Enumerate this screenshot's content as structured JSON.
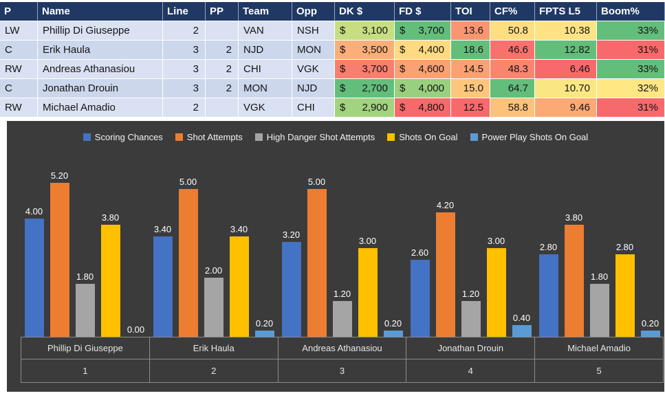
{
  "table": {
    "currency_symbol": "$",
    "columns": [
      {
        "key": "pos",
        "label": "P",
        "align": "left"
      },
      {
        "key": "name",
        "label": "Name",
        "align": "left"
      },
      {
        "key": "line",
        "label": "Line",
        "align": "right"
      },
      {
        "key": "pp",
        "label": "PP",
        "align": "right"
      },
      {
        "key": "team",
        "label": "Team",
        "align": "left"
      },
      {
        "key": "opp",
        "label": "Opp",
        "align": "left"
      },
      {
        "key": "dk",
        "label": "DK $",
        "align": "currency"
      },
      {
        "key": "fd",
        "label": "FD $",
        "align": "currency"
      },
      {
        "key": "toi",
        "label": "TOI",
        "align": "right"
      },
      {
        "key": "cf",
        "label": "CF%",
        "align": "right"
      },
      {
        "key": "fpts",
        "label": "FPTS L5",
        "align": "right"
      },
      {
        "key": "boom",
        "label": "Boom%",
        "align": "right"
      }
    ],
    "rows": [
      {
        "pos": "LW",
        "name": "Phillip Di Giuseppe",
        "line": "2",
        "pp": "",
        "team": "VAN",
        "opp": "NSH",
        "dk": {
          "text": "3,100",
          "bg": "#C6DE81"
        },
        "fd": {
          "text": "3,700",
          "bg": "#63BE7B"
        },
        "toi": {
          "text": "13.6",
          "bg": "#FA9572"
        },
        "cf": {
          "text": "50.8",
          "bg": "#FFDD81"
        },
        "fpts": {
          "text": "10.38",
          "bg": "#FFE283"
        },
        "boom": {
          "text": "33%",
          "bg": "#63BE7B"
        }
      },
      {
        "pos": "C",
        "name": "Erik Haula",
        "line": "3",
        "pp": "2",
        "team": "NJD",
        "opp": "MON",
        "dk": {
          "text": "3,500",
          "bg": "#FBAE77"
        },
        "fd": {
          "text": "4,400",
          "bg": "#FEDB81"
        },
        "toi": {
          "text": "18.6",
          "bg": "#63BE7B"
        },
        "cf": {
          "text": "46.6",
          "bg": "#F8716C"
        },
        "fpts": {
          "text": "12.82",
          "bg": "#63BE7B"
        },
        "boom": {
          "text": "31%",
          "bg": "#F8696B"
        }
      },
      {
        "pos": "RW",
        "name": "Andreas Athanasiou",
        "line": "3",
        "pp": "2",
        "team": "CHI",
        "opp": "VGK",
        "dk": {
          "text": "3,700",
          "bg": "#F87E6D"
        },
        "fd": {
          "text": "4,600",
          "bg": "#FBA174"
        },
        "toi": {
          "text": "14.5",
          "bg": "#FAA175"
        },
        "cf": {
          "text": "48.3",
          "bg": "#F9856F"
        },
        "fpts": {
          "text": "6.46",
          "bg": "#F8696B"
        },
        "boom": {
          "text": "33%",
          "bg": "#63BE7B"
        }
      },
      {
        "pos": "C",
        "name": "Jonathan Drouin",
        "line": "3",
        "pp": "2",
        "team": "MON",
        "opp": "NJD",
        "dk": {
          "text": "2,700",
          "bg": "#63BE7B"
        },
        "fd": {
          "text": "4,000",
          "bg": "#98D07E"
        },
        "toi": {
          "text": "15.0",
          "bg": "#FDC67D"
        },
        "cf": {
          "text": "64.7",
          "bg": "#63BE7B"
        },
        "fpts": {
          "text": "10.70",
          "bg": "#FAE683"
        },
        "boom": {
          "text": "32%",
          "bg": "#FFE784"
        }
      },
      {
        "pos": "RW",
        "name": "Michael Amadio",
        "line": "2",
        "pp": "",
        "team": "VGK",
        "opp": "CHI",
        "dk": {
          "text": "2,900",
          "bg": "#A2D37F"
        },
        "fd": {
          "text": "4,800",
          "bg": "#F8696B"
        },
        "toi": {
          "text": "12.5",
          "bg": "#F8696B"
        },
        "cf": {
          "text": "58.8",
          "bg": "#FCC17B"
        },
        "fpts": {
          "text": "9.46",
          "bg": "#FBA975"
        },
        "boom": {
          "text": "31%",
          "bg": "#F8696B"
        }
      }
    ]
  },
  "chart_data": {
    "type": "bar",
    "title": "",
    "background": "#3B3B3B",
    "legend_position": "top",
    "gridlines": false,
    "ylim": [
      0,
      5.7
    ],
    "value_label_format": "0.00",
    "categories": [
      "Phillip Di Giuseppe",
      "Erik Haula",
      "Andreas Athanasiou",
      "Jonathan Drouin",
      "Michael Amadio"
    ],
    "category_numbers": [
      "1",
      "2",
      "3",
      "4",
      "5"
    ],
    "series": [
      {
        "name": "Scoring Chances",
        "color": "#4472C4",
        "values": [
          4.0,
          3.4,
          3.2,
          2.6,
          2.8
        ]
      },
      {
        "name": "Shot Attempts",
        "color": "#ED7D31",
        "values": [
          5.2,
          5.0,
          5.0,
          4.2,
          3.8
        ]
      },
      {
        "name": "High Danger Shot Attempts",
        "color": "#A5A5A5",
        "values": [
          1.8,
          2.0,
          1.2,
          1.2,
          1.8
        ]
      },
      {
        "name": "Shots On Goal",
        "color": "#FFC000",
        "values": [
          3.8,
          3.4,
          3.0,
          3.0,
          2.8
        ]
      },
      {
        "name": "Power Play Shots On Goal",
        "color": "#5B9BD5",
        "values": [
          0.0,
          0.2,
          0.2,
          0.4,
          0.2
        ]
      }
    ]
  }
}
